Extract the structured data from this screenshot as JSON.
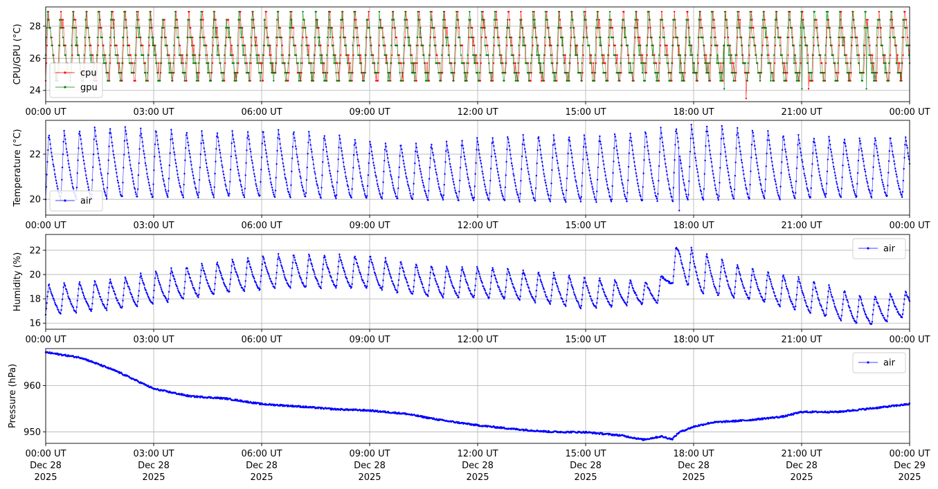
{
  "chart_data": [
    {
      "type": "line",
      "ylabel": "CPU/GPU (°C)",
      "ylim": [
        23.3,
        29.2
      ],
      "yticks": [
        24,
        26,
        28
      ],
      "xlim": [
        "2025-12-28T00:00Z",
        "2025-12-29T00:00Z"
      ],
      "xticks": [
        "00:00 UT",
        "03:00 UT",
        "06:00 UT",
        "09:00 UT",
        "12:00 UT",
        "15:00 UT",
        "18:00 UT",
        "21:00 UT",
        "00:00 UT"
      ],
      "grid": true,
      "legend_position": "lower-left",
      "signal": {
        "period_hours": 0.355,
        "low": 24.6,
        "high": 28.9,
        "levels": [
          24.6,
          25.1,
          25.7,
          26.2,
          26.8,
          27.3,
          27.9,
          28.4,
          28.9
        ]
      },
      "series": [
        {
          "name": "cpu",
          "color": "#ff0000",
          "min": 23.5,
          "max": 28.9
        },
        {
          "name": "gpu",
          "color": "#008000",
          "min": 24.1,
          "max": 28.9
        }
      ]
    },
    {
      "type": "line",
      "ylabel": "Temperature (°C)",
      "ylim": [
        19.3,
        23.5
      ],
      "yticks": [
        20,
        22
      ],
      "xlim": [
        "2025-12-28T00:00Z",
        "2025-12-29T00:00Z"
      ],
      "xticks": [
        "00:00 UT",
        "03:00 UT",
        "06:00 UT",
        "09:00 UT",
        "12:00 UT",
        "15:00 UT",
        "18:00 UT",
        "21:00 UT",
        "00:00 UT"
      ],
      "grid": true,
      "legend_position": "lower-left",
      "signal": {
        "period_hours": 0.425,
        "low": 20.0,
        "high": 22.9
      },
      "series": [
        {
          "name": "air",
          "color": "#0000ff",
          "min": 19.5,
          "max": 23.3
        }
      ]
    },
    {
      "type": "line",
      "ylabel": "Humidity (%)",
      "ylim": [
        15.5,
        23.3
      ],
      "yticks": [
        16,
        18,
        20,
        22
      ],
      "xlim": [
        "2025-12-28T00:00Z",
        "2025-12-29T00:00Z"
      ],
      "xticks": [
        "00:00 UT",
        "03:00 UT",
        "06:00 UT",
        "09:00 UT",
        "12:00 UT",
        "15:00 UT",
        "18:00 UT",
        "21:00 UT",
        "00:00 UT"
      ],
      "grid": true,
      "legend_position": "upper-right",
      "signal": {
        "period_hours": 0.425
      },
      "envelope": [
        {
          "t": 0.0,
          "low": 16.7,
          "high": 19.2
        },
        {
          "t": 2.0,
          "low": 17.2,
          "high": 19.7
        },
        {
          "t": 3.0,
          "low": 17.6,
          "high": 20.3
        },
        {
          "t": 5.0,
          "low": 18.5,
          "high": 21.2
        },
        {
          "t": 6.5,
          "low": 18.9,
          "high": 21.7
        },
        {
          "t": 9.0,
          "low": 18.9,
          "high": 21.6
        },
        {
          "t": 10.5,
          "low": 18.2,
          "high": 20.8
        },
        {
          "t": 13.0,
          "low": 18.0,
          "high": 20.5
        },
        {
          "t": 15.0,
          "low": 17.2,
          "high": 19.8
        },
        {
          "t": 17.0,
          "low": 17.7,
          "high": 19.4
        },
        {
          "t": 17.6,
          "low": 20.0,
          "high": 22.8
        },
        {
          "t": 18.0,
          "low": 18.5,
          "high": 22.1
        },
        {
          "t": 19.5,
          "low": 18.0,
          "high": 20.6
        },
        {
          "t": 21.0,
          "low": 17.0,
          "high": 19.8
        },
        {
          "t": 22.8,
          "low": 15.8,
          "high": 18.2
        },
        {
          "t": 24.0,
          "low": 16.6,
          "high": 18.7
        }
      ],
      "series": [
        {
          "name": "air",
          "color": "#0000ff",
          "min": 15.8,
          "max": 22.9
        }
      ]
    },
    {
      "type": "line",
      "ylabel": "Pressure (hPa)",
      "ylim": [
        947.5,
        968.0
      ],
      "yticks": [
        950,
        960
      ],
      "xlim": [
        "2025-12-28T00:00Z",
        "2025-12-29T00:00Z"
      ],
      "xticks": [
        "00:00 UT",
        "03:00 UT",
        "06:00 UT",
        "09:00 UT",
        "12:00 UT",
        "15:00 UT",
        "18:00 UT",
        "21:00 UT",
        "00:00 UT"
      ],
      "xtick_dates": [
        "Dec 28",
        "Dec 28",
        "Dec 28",
        "Dec 28",
        "Dec 28",
        "Dec 28",
        "Dec 28",
        "Dec 28",
        "Dec 29"
      ],
      "xtick_years": [
        "2025",
        "2025",
        "2025",
        "2025",
        "2025",
        "2025",
        "2025",
        "2025",
        "2025"
      ],
      "grid": true,
      "legend_position": "upper-right",
      "trend": [
        {
          "t": 0.0,
          "v": 967.2
        },
        {
          "t": 1.0,
          "v": 966.0
        },
        {
          "t": 2.0,
          "v": 963.0
        },
        {
          "t": 3.0,
          "v": 959.3
        },
        {
          "t": 4.0,
          "v": 957.7
        },
        {
          "t": 5.0,
          "v": 957.2
        },
        {
          "t": 6.0,
          "v": 956.0
        },
        {
          "t": 7.0,
          "v": 955.5
        },
        {
          "t": 8.0,
          "v": 954.9
        },
        {
          "t": 9.0,
          "v": 954.6
        },
        {
          "t": 10.0,
          "v": 953.9
        },
        {
          "t": 11.0,
          "v": 952.5
        },
        {
          "t": 12.0,
          "v": 951.4
        },
        {
          "t": 13.0,
          "v": 950.6
        },
        {
          "t": 14.0,
          "v": 950.0
        },
        {
          "t": 15.0,
          "v": 949.9
        },
        {
          "t": 16.0,
          "v": 949.2
        },
        {
          "t": 16.6,
          "v": 948.3
        },
        {
          "t": 17.1,
          "v": 949.0
        },
        {
          "t": 17.4,
          "v": 948.4
        },
        {
          "t": 17.6,
          "v": 949.9
        },
        {
          "t": 18.0,
          "v": 951.1
        },
        {
          "t": 18.5,
          "v": 952.0
        },
        {
          "t": 19.5,
          "v": 952.5
        },
        {
          "t": 20.5,
          "v": 953.3
        },
        {
          "t": 21.0,
          "v": 954.3
        },
        {
          "t": 22.0,
          "v": 954.3
        },
        {
          "t": 23.0,
          "v": 955.1
        },
        {
          "t": 24.0,
          "v": 956.0
        }
      ],
      "series": [
        {
          "name": "air",
          "color": "#0000ff",
          "min": 948.3,
          "max": 967.2
        }
      ]
    }
  ]
}
